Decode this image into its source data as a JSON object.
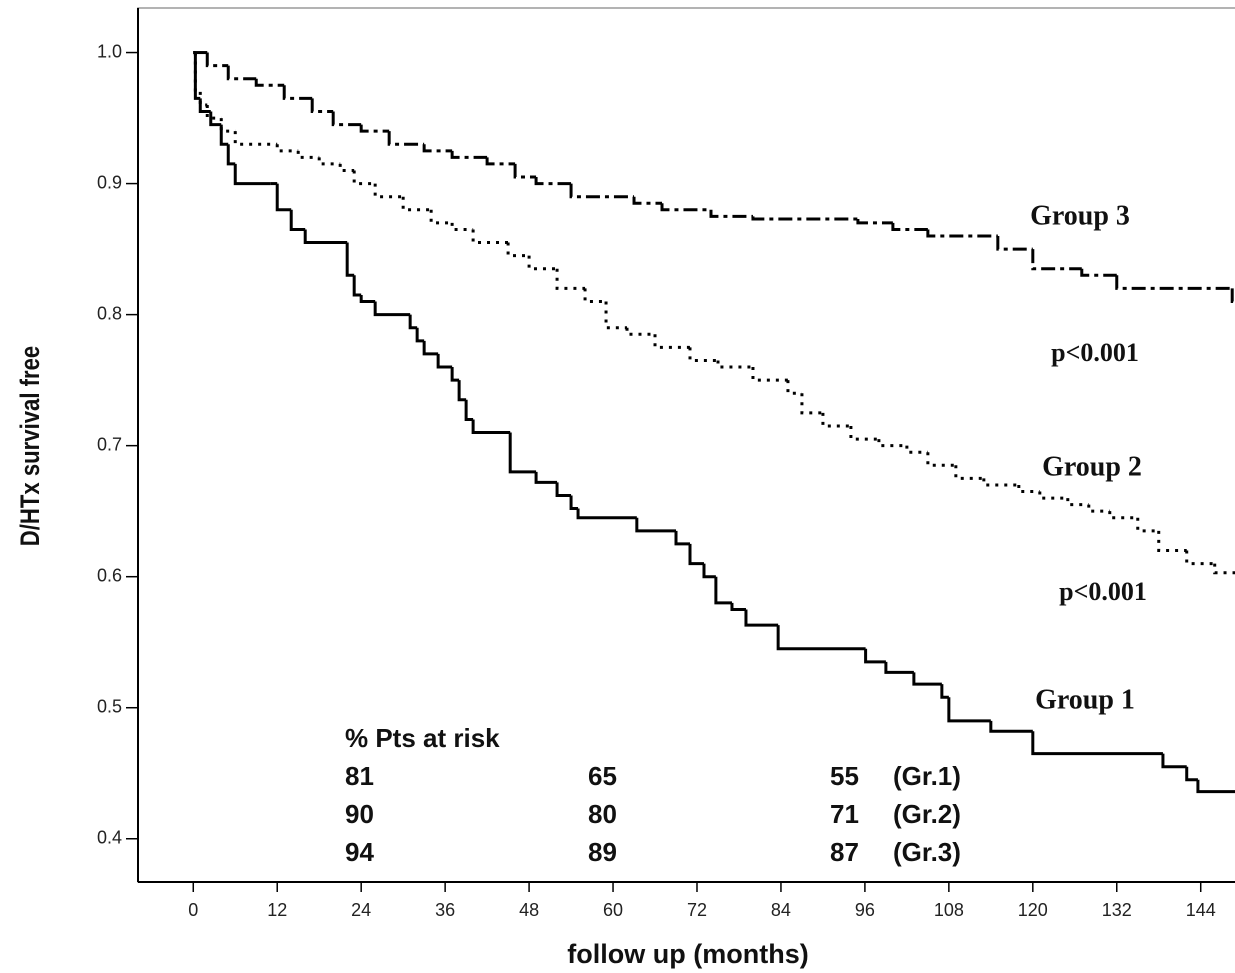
{
  "chart_data": {
    "type": "step",
    "x_label": "follow up (months)",
    "y_label": "D/HTx survival free",
    "xlim": [
      -7.9,
      148.9
    ],
    "ylim": [
      0.367,
      1.034
    ],
    "xticks": [
      0,
      12,
      24,
      36,
      48,
      60,
      72,
      84,
      96,
      108,
      120,
      132,
      144
    ],
    "yticks": [
      {
        "value": 0.4,
        "label": "0.4"
      },
      {
        "value": 0.5,
        "label": "0.5"
      },
      {
        "value": 0.6,
        "label": "0.6"
      },
      {
        "value": 0.7,
        "label": "0.7"
      },
      {
        "value": 0.8,
        "label": "0.8"
      },
      {
        "value": 0.9,
        "label": "0.9"
      },
      {
        "value": 1.0,
        "label": "1.0"
      }
    ],
    "series": [
      {
        "name": "Group 1",
        "color": "#000000",
        "dash": "solid",
        "x": [
          0,
          0.3,
          1,
          2.5,
          4,
          5,
          6,
          11,
          12,
          14,
          16,
          22,
          23,
          24,
          26,
          31,
          32,
          33,
          35,
          37,
          38,
          39,
          40,
          45.3,
          49,
          52,
          54,
          55,
          63.4,
          69,
          71,
          73,
          74.7,
          77,
          79,
          83.6,
          96.1,
          99,
          103,
          107,
          108,
          114,
          120,
          138.6,
          142,
          143.6,
          148.9
        ],
        "values": [
          1.0,
          0.965,
          0.955,
          0.945,
          0.93,
          0.915,
          0.9,
          0.9,
          0.88,
          0.865,
          0.855,
          0.83,
          0.815,
          0.81,
          0.8,
          0.79,
          0.78,
          0.77,
          0.76,
          0.75,
          0.735,
          0.72,
          0.71,
          0.68,
          0.672,
          0.662,
          0.652,
          0.645,
          0.635,
          0.625,
          0.61,
          0.6,
          0.58,
          0.575,
          0.563,
          0.545,
          0.535,
          0.527,
          0.518,
          0.508,
          0.49,
          0.482,
          0.465,
          0.455,
          0.445,
          0.436,
          0.436
        ]
      },
      {
        "name": "Group 2",
        "color": "#000000",
        "dash": "dotted",
        "x": [
          0,
          0.3,
          1,
          2,
          4,
          6,
          12,
          15,
          18,
          21,
          23,
          26,
          30,
          34,
          37,
          40,
          45,
          48,
          52,
          56,
          59,
          62,
          66,
          71,
          75,
          80,
          85,
          87,
          90,
          94,
          98,
          102,
          105,
          109,
          113,
          118,
          121,
          125,
          128,
          131,
          135,
          138,
          142,
          146,
          148.9
        ],
        "values": [
          1.0,
          0.97,
          0.96,
          0.95,
          0.94,
          0.93,
          0.925,
          0.92,
          0.915,
          0.91,
          0.9,
          0.89,
          0.88,
          0.87,
          0.865,
          0.855,
          0.845,
          0.835,
          0.82,
          0.81,
          0.79,
          0.785,
          0.775,
          0.765,
          0.76,
          0.75,
          0.74,
          0.725,
          0.715,
          0.705,
          0.7,
          0.695,
          0.685,
          0.675,
          0.67,
          0.665,
          0.66,
          0.655,
          0.65,
          0.645,
          0.635,
          0.62,
          0.61,
          0.603,
          0.603
        ]
      },
      {
        "name": "Group 3",
        "color": "#000000",
        "dash": "dashdot",
        "x": [
          0,
          2,
          5,
          9,
          13,
          17,
          20,
          24,
          28,
          33,
          37,
          42,
          46,
          49,
          54,
          63,
          67,
          74,
          80,
          95,
          100,
          105,
          115,
          120,
          127,
          132,
          148.5,
          148.9
        ],
        "values": [
          1.0,
          0.99,
          0.98,
          0.975,
          0.965,
          0.955,
          0.945,
          0.94,
          0.93,
          0.925,
          0.92,
          0.915,
          0.905,
          0.9,
          0.89,
          0.885,
          0.88,
          0.875,
          0.873,
          0.87,
          0.865,
          0.86,
          0.85,
          0.835,
          0.83,
          0.82,
          0.81,
          0.81
        ]
      }
    ],
    "annotations": [
      "p<0.001",
      "p<0.001"
    ],
    "risk_table": {
      "title": "% Pts at risk",
      "rows": [
        {
          "values": [
            81,
            65,
            55
          ],
          "group": "(Gr.1)"
        },
        {
          "values": [
            90,
            80,
            71
          ],
          "group": "(Gr.2)"
        },
        {
          "values": [
            94,
            89,
            87
          ],
          "group": "(Gr.3)"
        }
      ]
    }
  }
}
